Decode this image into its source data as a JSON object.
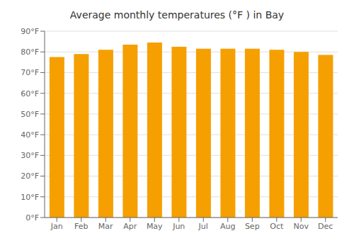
{
  "chart_data": {
    "type": "bar",
    "title": "Average monthly temperatures (°F ) in Bay",
    "categories": [
      "Jan",
      "Feb",
      "Mar",
      "Apr",
      "May",
      "Jun",
      "Jul",
      "Aug",
      "Sep",
      "Oct",
      "Nov",
      "Dec"
    ],
    "values": [
      77.5,
      79.0,
      81.0,
      83.5,
      84.5,
      82.5,
      81.5,
      81.5,
      81.5,
      81.0,
      80.0,
      78.5
    ],
    "color": "#F5A000",
    "ylim": [
      0,
      90
    ],
    "yticks": [
      {
        "value": 0,
        "label": "0°F"
      },
      {
        "value": 10,
        "label": "10°F"
      },
      {
        "value": 20,
        "label": "20°F"
      },
      {
        "value": 30,
        "label": "30°F"
      },
      {
        "value": 40,
        "label": "40°F"
      },
      {
        "value": 50,
        "label": "50°F"
      },
      {
        "value": 60,
        "label": "60°F"
      },
      {
        "value": 70,
        "label": "70°F"
      },
      {
        "value": 80,
        "label": "80°F"
      },
      {
        "value": 90,
        "label": "90°F"
      }
    ],
    "grid": true
  }
}
